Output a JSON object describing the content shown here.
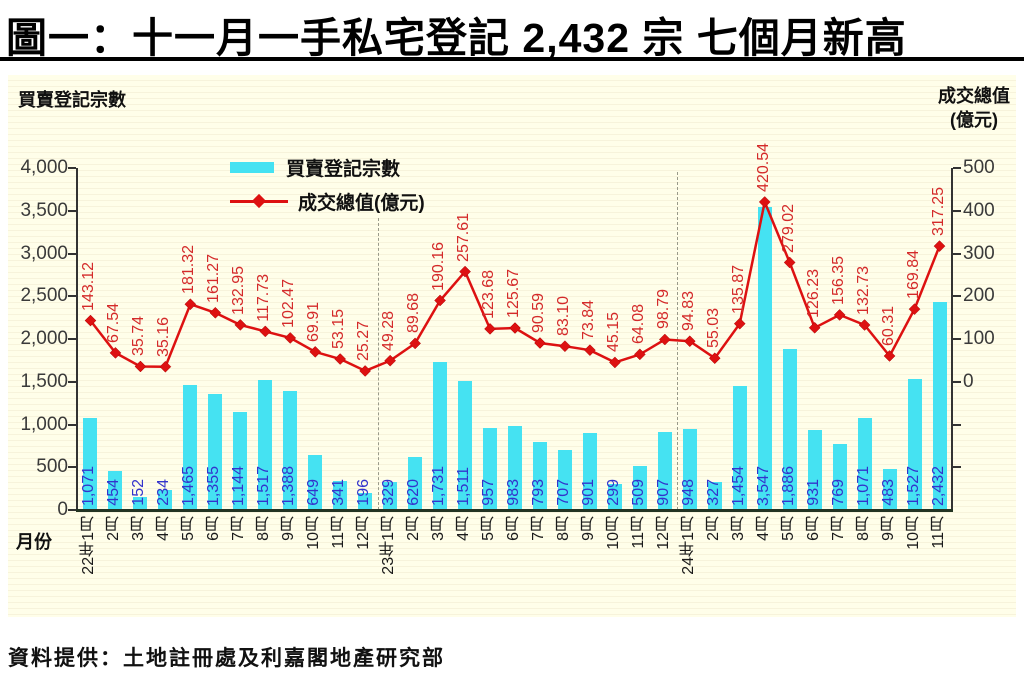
{
  "header": {
    "title": "圖一：十一月一手私宅登記 2,432 宗  七個月新高"
  },
  "panel": {
    "left_axis_title": "買賣登記宗數",
    "right_axis_title_line1": "成交總值",
    "right_axis_title_line2": "(億元)",
    "x_axis_title": "月份"
  },
  "legend": {
    "items": [
      {
        "label": "買賣登記宗數",
        "type": "bar"
      },
      {
        "label": "成交總值(億元)",
        "type": "line"
      }
    ]
  },
  "footer": {
    "source": "資料提供：土地註冊處及利嘉閣地產研究部"
  },
  "chart_data": {
    "type": "combo-bar-line",
    "title": "圖一：十一月一手私宅登記 2,432 宗  七個月新高",
    "source_note": "資料提供：土地註冊處及利嘉閣地產研究部",
    "categories": [
      "22年1月",
      "2月",
      "3月",
      "4月",
      "5月",
      "6月",
      "7月",
      "8月",
      "9月",
      "10月",
      "11月",
      "12月",
      "23年1月",
      "2月",
      "3月",
      "4月",
      "5月",
      "6月",
      "7月",
      "8月",
      "9月",
      "10月",
      "11月",
      "12月",
      "24年1月",
      "2月",
      "3月",
      "4月",
      "5月",
      "6月",
      "7月",
      "8月",
      "9月",
      "10月",
      "11月"
    ],
    "series": [
      {
        "name": "買賣登記宗數",
        "type": "bar",
        "axis": "left",
        "color": "#45e2f2",
        "label_color": "#3333cc",
        "values": [
          1071,
          454,
          152,
          234,
          1465,
          1355,
          1144,
          1517,
          1388,
          649,
          341,
          196,
          329,
          620,
          1731,
          1511,
          957,
          983,
          793,
          707,
          901,
          299,
          509,
          907,
          948,
          327,
          1454,
          3547,
          1886,
          931,
          769,
          1071,
          483,
          1527,
          2432
        ],
        "labels": [
          "1,071",
          "454",
          "152",
          "234",
          "1,465",
          "1,355",
          "1,144",
          "1,517",
          "1,388",
          "649",
          "341",
          "196",
          "329",
          "620",
          "1,731",
          "1,511",
          "957",
          "983",
          "793",
          "707",
          "901",
          "299",
          "509",
          "907",
          "948",
          "327",
          "1,454",
          "3,547",
          "1,886",
          "931",
          "769",
          "1,071",
          "483",
          "1,527",
          "2,432"
        ]
      },
      {
        "name": "成交總值(億元)",
        "type": "line",
        "axis": "right",
        "color": "#dd1111",
        "label_color": "#d42a2a",
        "values": [
          143.12,
          67.54,
          35.74,
          35.16,
          181.32,
          161.27,
          132.95,
          117.73,
          102.47,
          69.91,
          53.15,
          25.27,
          49.28,
          89.68,
          190.16,
          257.61,
          123.68,
          125.67,
          90.59,
          83.1,
          73.84,
          45.15,
          64.08,
          98.79,
          94.83,
          55.03,
          135.87,
          420.54,
          279.02,
          126.23,
          156.35,
          132.73,
          60.31,
          169.84,
          317.25
        ],
        "labels": [
          "143.12",
          "67.54",
          "35.74",
          "35.16",
          "181.32",
          "161.27",
          "132.95",
          "117.73",
          "102.47",
          "69.91",
          "53.15",
          "25.27",
          "49.28",
          "89.68",
          "190.16",
          "257.61",
          "123.68",
          "125.67",
          "90.59",
          "83.10",
          "73.84",
          "45.15",
          "64.08",
          "98.79",
          "94.83",
          "55.03",
          "135.87",
          "420.54",
          "279.02",
          "126.23",
          "156.35",
          "132.73",
          "60.31",
          "169.84",
          "317.25"
        ]
      }
    ],
    "left_axis": {
      "title": "買賣登記宗數",
      "min": 0,
      "max": 4000,
      "ticks": [
        "4,000",
        "3,500",
        "3,000",
        "2,500",
        "2,000",
        "1,500",
        "1,000",
        "500",
        "0"
      ]
    },
    "right_axis": {
      "title": "成交總值(億元)",
      "max": 500,
      "min_labeled": 0,
      "drawn_min": -300,
      "ticks": [
        "500",
        "400",
        "300",
        "200",
        "100",
        "0"
      ],
      "unlabeled_tick_values": [
        -100,
        -200
      ]
    },
    "x_axis": {
      "title": "月份"
    },
    "year_separator_before_index": [
      12,
      24
    ],
    "legend_position": "top-center",
    "grid": false
  }
}
